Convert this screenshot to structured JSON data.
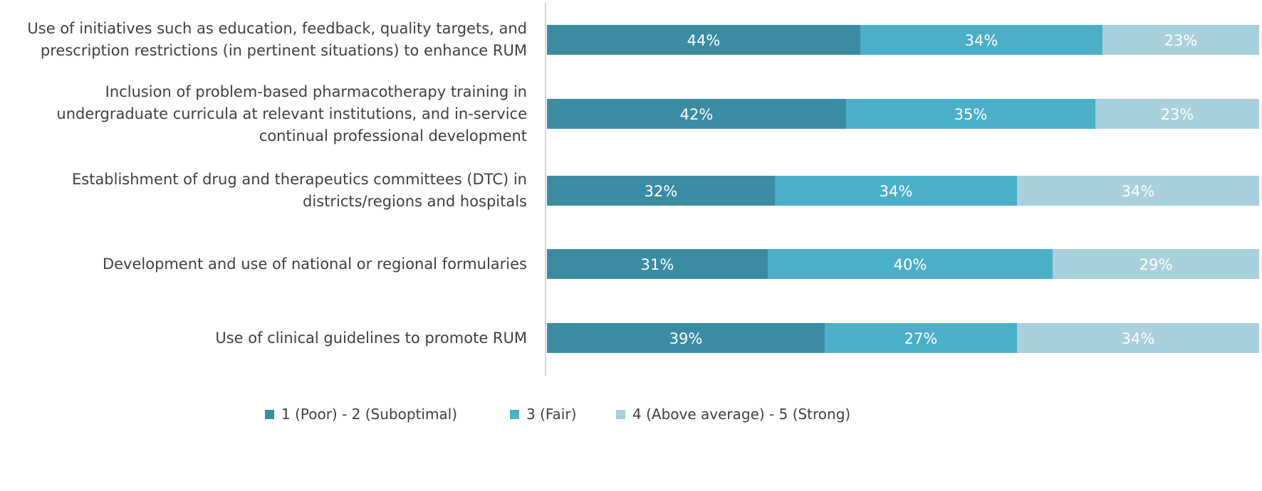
{
  "chart_data": {
    "type": "bar",
    "orientation": "horizontal",
    "stacked": true,
    "percent_stacked": true,
    "title": "",
    "xlabel": "",
    "ylabel": "",
    "xlim": [
      0,
      100
    ],
    "grid": false,
    "legend_position": "bottom",
    "categories": [
      [
        "Use of initiatives such as education, feedback, quality targets, and",
        "prescription restrictions (in pertinent situations) to enhance RUM"
      ],
      [
        "Inclusion of problem-based pharmacotherapy training in",
        "undergraduate curricula at relevant institutions, and in-service",
        "continual professional development"
      ],
      [
        "Establishment of drug and therapeutics committees (DTC) in",
        "districts/regions and hospitals"
      ],
      [
        "Development and use of national or regional formularies"
      ],
      [
        "Use of clinical guidelines to promote RUM"
      ]
    ],
    "series": [
      {
        "name": "1 (Poor) - 2 (Suboptimal)",
        "color": "#3a8ca3",
        "values": [
          44,
          42,
          32,
          31,
          39
        ],
        "labels": [
          "44%",
          "42%",
          "32%",
          "31%",
          "39%"
        ]
      },
      {
        "name": "3 (Fair)",
        "color": "#4bafc8",
        "values": [
          34,
          35,
          34,
          40,
          27
        ],
        "labels": [
          "34%",
          "35%",
          "34%",
          "40%",
          "27%"
        ]
      },
      {
        "name": "4 (Above average) - 5 (Strong)",
        "color": "#a9d1dd",
        "values": [
          23,
          23,
          34,
          29,
          34
        ],
        "labels": [
          "23%",
          "23%",
          "34%",
          "29%",
          "34%"
        ]
      }
    ]
  }
}
